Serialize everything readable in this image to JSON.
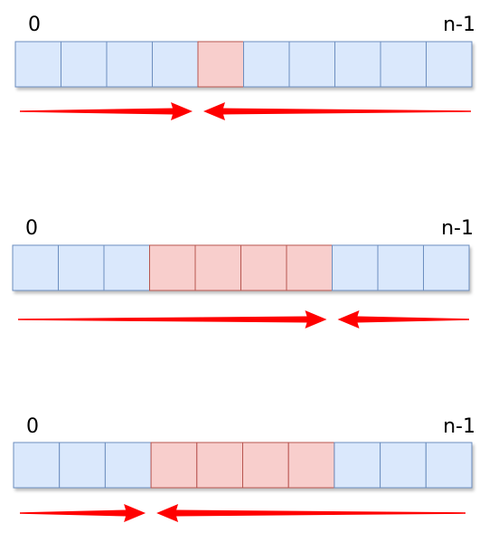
{
  "colors": {
    "cell_fill": "#dae8fc",
    "cell_stroke": "#6c8ebf",
    "highlight_fill": "#f8cecc",
    "highlight_stroke": "#b85450",
    "arrow": "#ff0000"
  },
  "arrays": [
    {
      "start_label": "0",
      "end_label": "n-1",
      "cells": 10,
      "highlighted": [
        4
      ],
      "arrows": [
        {
          "from": "left",
          "to": "highlight-left"
        },
        {
          "from": "right",
          "to": "highlight-left"
        }
      ]
    },
    {
      "start_label": "0",
      "end_label": "n-1",
      "cells": 10,
      "highlighted": [
        3,
        4,
        5,
        6
      ],
      "arrows": [
        {
          "from": "left",
          "to": "highlight-right"
        },
        {
          "from": "right",
          "to": "highlight-right"
        }
      ]
    },
    {
      "start_label": "0",
      "end_label": "n-1",
      "cells": 10,
      "highlighted": [
        3,
        4,
        5,
        6
      ],
      "arrows": [
        {
          "from": "left",
          "to": "highlight-left"
        },
        {
          "from": "right",
          "to": "highlight-left"
        }
      ]
    }
  ]
}
